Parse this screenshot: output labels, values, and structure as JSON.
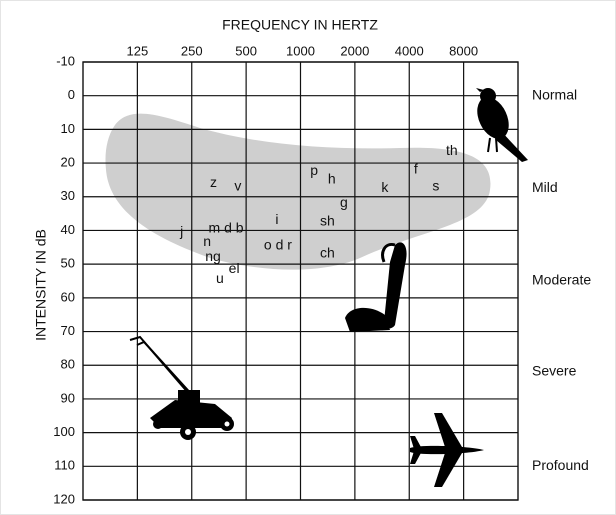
{
  "chart_data": {
    "type": "audiogram",
    "title": "FREQUENCY IN HERTZ",
    "y_label": "INTENSITY IN dB",
    "xscale": "log",
    "xlim": [
      62.5,
      16000
    ],
    "xticks": [
      125,
      250,
      500,
      1000,
      2000,
      4000,
      8000
    ],
    "ylim": [
      -10,
      120
    ],
    "yticks": [
      -10,
      0,
      10,
      20,
      30,
      40,
      50,
      60,
      70,
      80,
      90,
      100,
      110,
      120
    ],
    "y_inverted": true,
    "grid": true,
    "bands": [
      {
        "label": "Normal",
        "value": 0
      },
      {
        "label": "Mild",
        "value": 27.5
      },
      {
        "label": "Moderate",
        "value": 55
      },
      {
        "label": "Severe",
        "value": 82
      },
      {
        "label": "Profound",
        "value": 110
      }
    ],
    "sounds": {
      "labels": [
        "z",
        "v",
        "p",
        "h",
        "f",
        "th",
        "s",
        "k",
        "g",
        "sh",
        "i",
        "j",
        "m d b",
        "n",
        "ng",
        "o d r",
        "ch",
        "el",
        "u"
      ],
      "x": [
        330,
        450,
        1190,
        1490,
        4350,
        6880,
        5620,
        2930,
        1740,
        1410,
        740,
        220,
        387,
        304,
        328,
        750,
        1410,
        429,
        358
      ],
      "y": [
        26,
        27,
        22.5,
        25,
        22,
        16.5,
        27,
        27.5,
        32,
        37.5,
        37,
        40.5,
        39.5,
        43.5,
        48,
        44.5,
        47,
        51.5,
        54.5
      ]
    }
  }
}
